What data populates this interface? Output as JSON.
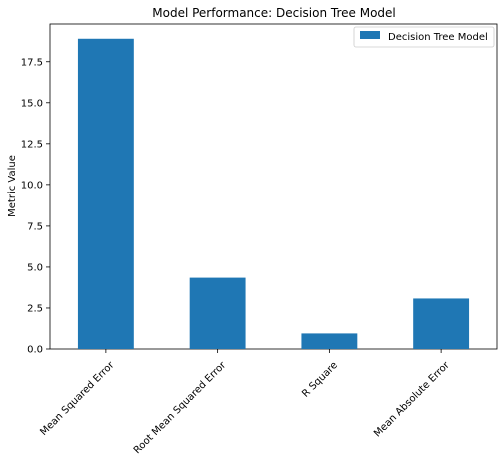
{
  "chart_data": {
    "type": "bar",
    "title": "Model Performance: Decision Tree Model",
    "xlabel": "",
    "ylabel": "Metric Value",
    "categories": [
      "Mean Squared Error",
      "Root Mean Squared Error",
      "R Square",
      "Mean Absolute Error"
    ],
    "series": [
      {
        "name": "Decision Tree Model",
        "values": [
          18.9,
          4.35,
          0.95,
          3.08
        ]
      }
    ],
    "ylim": [
      0,
      19.8
    ],
    "yticks": [
      0.0,
      2.5,
      5.0,
      7.5,
      10.0,
      12.5,
      15.0,
      17.5
    ],
    "ytick_labels": [
      "0.0",
      "2.5",
      "5.0",
      "7.5",
      "10.0",
      "12.5",
      "15.0",
      "17.5"
    ],
    "grid": false,
    "legend_position": "top-right",
    "bar_color": "#1f77b4"
  }
}
